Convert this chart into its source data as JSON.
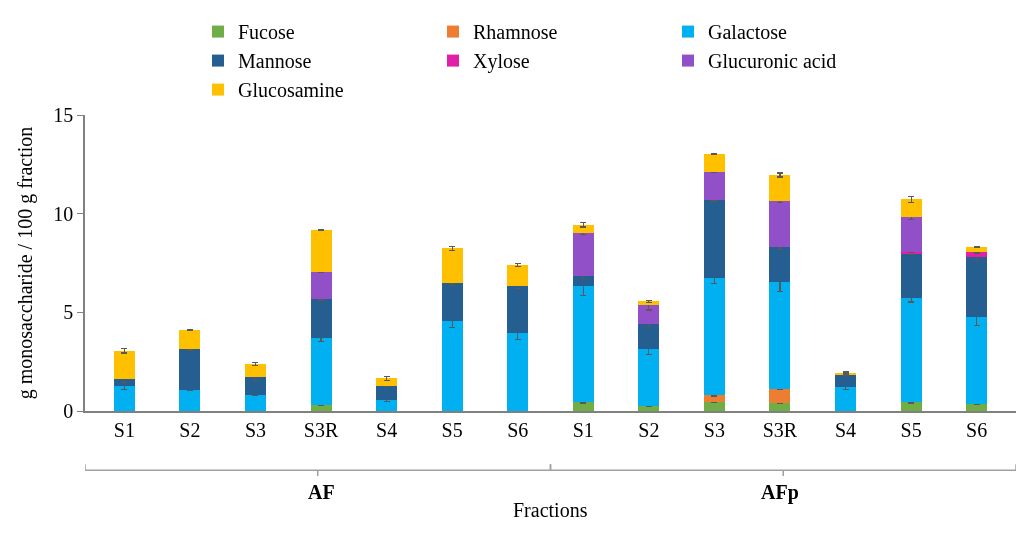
{
  "chart_data": {
    "type": "bar",
    "stacked": true,
    "ylabel": "g monosaccharide / 100 g fraction",
    "xlabel": "Fractions",
    "categories": [
      "S1",
      "S2",
      "S3",
      "S3R",
      "S4",
      "S5",
      "S6",
      "S1",
      "S2",
      "S3",
      "S3R",
      "S4",
      "S5",
      "S6"
    ],
    "series": [
      {
        "name": "Fucose",
        "color": "#70ad47",
        "values": [
          0,
          0,
          0,
          0.31,
          0,
          0,
          0,
          0.44,
          0.27,
          0.48,
          0.42,
          0,
          0.44,
          0.34
        ],
        "errors": [
          null,
          null,
          null,
          0.03,
          null,
          null,
          null,
          0.04,
          0.03,
          0.05,
          0.03,
          null,
          0.04,
          0.03
        ]
      },
      {
        "name": "Rhamnose",
        "color": "#ed7d31",
        "values": [
          0,
          0,
          0,
          0,
          0,
          0,
          0,
          0,
          0,
          0.31,
          0.69,
          0,
          0,
          0
        ],
        "errors": [
          null,
          null,
          null,
          null,
          null,
          null,
          null,
          null,
          null,
          0.03,
          0.03,
          null,
          null,
          null
        ]
      },
      {
        "name": "Galactose",
        "color": "#00b0f0",
        "values": [
          1.25,
          1.06,
          0.82,
          3.4,
          0.58,
          4.58,
          3.93,
          5.88,
          2.88,
          5.96,
          5.45,
          1.2,
          5.28,
          4.4
        ],
        "errors": [
          0.18,
          0.04,
          0.03,
          0.2,
          0.1,
          0.35,
          0.3,
          0.45,
          0.3,
          0.3,
          0.5,
          0.1,
          0.2,
          0.4
        ]
      },
      {
        "name": "Mannose",
        "color": "#255e91",
        "values": [
          0.38,
          2.07,
          0.92,
          1.97,
          0.71,
          1.9,
          2.42,
          0.54,
          1.27,
          3.92,
          1.76,
          0.66,
          2.26,
          3.05
        ],
        "errors": [
          0.2,
          0.08,
          0.2,
          0.05,
          0.05,
          0.12,
          0.15,
          0.15,
          0.15,
          0.05,
          0.15,
          0.05,
          0.05,
          0.15
        ]
      },
      {
        "name": "Xylose",
        "color": "#e020a8",
        "values": [
          0,
          0,
          0,
          0,
          0,
          0,
          0,
          0,
          0,
          0,
          0,
          0,
          0.1,
          0.25
        ],
        "errors": [
          null,
          null,
          null,
          null,
          null,
          null,
          null,
          null,
          null,
          null,
          null,
          null,
          0.03,
          0.03
        ]
      },
      {
        "name": "Glucuronic acid",
        "color": "#9150c8",
        "values": [
          0,
          0,
          0,
          1.36,
          0,
          0,
          0,
          2.18,
          0.95,
          1.45,
          2.31,
          0,
          1.73,
          0
        ],
        "errors": [
          null,
          null,
          null,
          0.03,
          null,
          null,
          null,
          0.1,
          0.25,
          0.03,
          0.08,
          null,
          0.1,
          null
        ]
      },
      {
        "name": "Glucosamine",
        "color": "#ffc000",
        "values": [
          1.43,
          0.99,
          0.64,
          2.13,
          0.37,
          1.77,
          1.04,
          0.4,
          0.19,
          0.9,
          1.33,
          0.07,
          0.92,
          0.28
        ],
        "errors": [
          0.12,
          0.02,
          0.08,
          0.02,
          0.1,
          0.1,
          0.08,
          0.12,
          0.05,
          0.02,
          0.1,
          0.05,
          0.15,
          0.03
        ]
      }
    ],
    "ylim": [
      0,
      15
    ],
    "yticks": [
      0,
      5,
      10,
      15
    ],
    "legend": "top",
    "annotations": [
      "AF",
      "AFp"
    ]
  }
}
